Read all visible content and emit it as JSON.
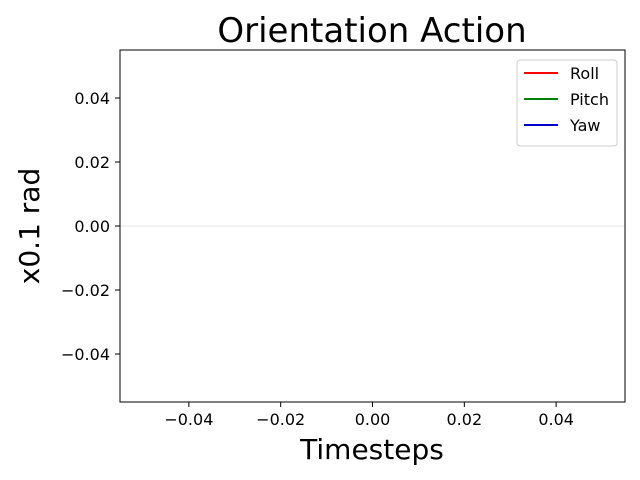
{
  "chart_data": {
    "type": "line",
    "title": "Orientation Action",
    "xlabel": "Timesteps",
    "ylabel": "x0.1 rad",
    "xlim": [
      -0.055,
      0.055
    ],
    "ylim": [
      -0.055,
      0.055
    ],
    "xticks": [
      -0.04,
      -0.02,
      0.0,
      0.02,
      0.04
    ],
    "xtick_labels": [
      "−0.04",
      "−0.02",
      "0.00",
      "0.02",
      "0.04"
    ],
    "yticks": [
      0.04,
      0.02,
      0.0,
      -0.02,
      -0.04
    ],
    "ytick_labels": [
      "0.04",
      "0.02",
      "0.00",
      "−0.02",
      "−0.04"
    ],
    "reference_line": {
      "y": 0,
      "color": "#ebebeb"
    },
    "legend_position": "top-right",
    "grid": false,
    "series": [
      {
        "name": "Roll",
        "color": "#ff0000",
        "x": [],
        "y": []
      },
      {
        "name": "Pitch",
        "color": "#008000",
        "x": [],
        "y": []
      },
      {
        "name": "Yaw",
        "color": "#0000cc",
        "x": [],
        "y": []
      }
    ]
  }
}
